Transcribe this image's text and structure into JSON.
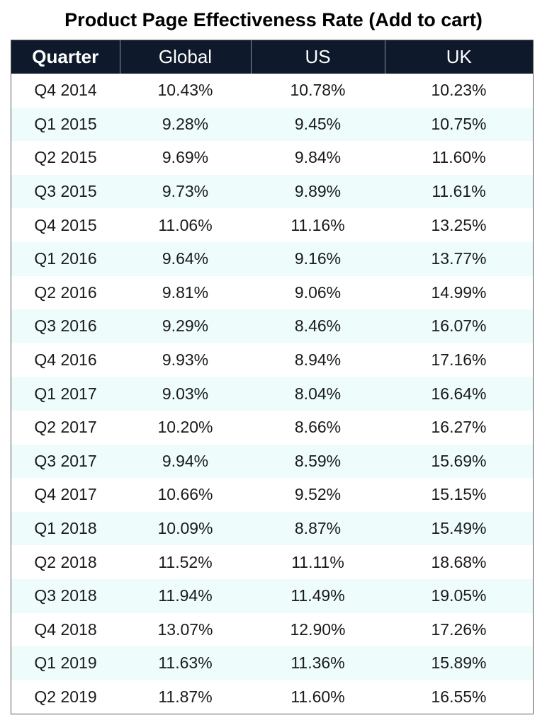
{
  "chart_data": {
    "type": "table",
    "title": "Product Page Effectiveness Rate (Add to cart)",
    "columns": [
      "Quarter",
      "Global",
      "US",
      "UK"
    ],
    "rows": [
      [
        "Q4 2014",
        "10.43%",
        "10.78%",
        "10.23%"
      ],
      [
        "Q1 2015",
        "9.28%",
        "9.45%",
        "10.75%"
      ],
      [
        "Q2 2015",
        "9.69%",
        "9.84%",
        "11.60%"
      ],
      [
        "Q3 2015",
        "9.73%",
        "9.89%",
        "11.61%"
      ],
      [
        "Q4 2015",
        "11.06%",
        "11.16%",
        "13.25%"
      ],
      [
        "Q1 2016",
        "9.64%",
        "9.16%",
        "13.77%"
      ],
      [
        "Q2 2016",
        "9.81%",
        "9.06%",
        "14.99%"
      ],
      [
        "Q3 2016",
        "9.29%",
        "8.46%",
        "16.07%"
      ],
      [
        "Q4 2016",
        "9.93%",
        "8.94%",
        "17.16%"
      ],
      [
        "Q1 2017",
        "9.03%",
        "8.04%",
        "16.64%"
      ],
      [
        "Q2 2017",
        "10.20%",
        "8.66%",
        "16.27%"
      ],
      [
        "Q3 2017",
        "9.94%",
        "8.59%",
        "15.69%"
      ],
      [
        "Q4 2017",
        "10.66%",
        "9.52%",
        "15.15%"
      ],
      [
        "Q1 2018",
        "10.09%",
        "8.87%",
        "15.49%"
      ],
      [
        "Q2 2018",
        "11.52%",
        "11.11%",
        "18.68%"
      ],
      [
        "Q3 2018",
        "11.94%",
        "11.49%",
        "19.05%"
      ],
      [
        "Q4 2018",
        "13.07%",
        "12.90%",
        "17.26%"
      ],
      [
        "Q1 2019",
        "11.63%",
        "11.36%",
        "15.89%"
      ],
      [
        "Q2 2019",
        "11.87%",
        "11.60%",
        "16.55%"
      ]
    ],
    "colors": {
      "header_background": "#0e1a2b",
      "header_text": "#ffffff",
      "stripe_background": "#eefcfc",
      "row_background": "#ffffff"
    }
  }
}
